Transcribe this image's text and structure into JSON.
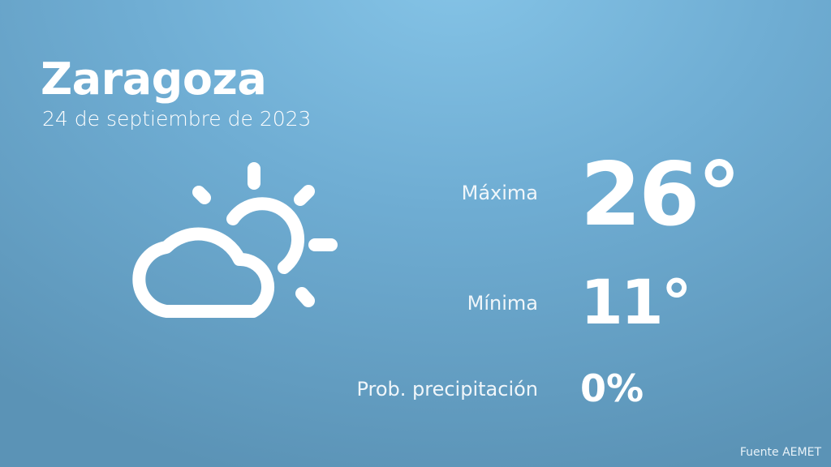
{
  "header": {
    "city": "Zaragoza",
    "date": "24 de septiembre de 2023"
  },
  "weather_icon": "partly-cloudy-icon",
  "stats": {
    "max": {
      "label": "Máxima",
      "value": "26°"
    },
    "min": {
      "label": "Mínima",
      "value": "11°"
    },
    "precip": {
      "label": "Prob. precipitación",
      "value": "0%"
    }
  },
  "footer": {
    "source": "Fuente AEMET"
  },
  "colors": {
    "background_top": "#85c4e7",
    "background_bottom": "#5b93b6",
    "text": "#ffffff"
  }
}
